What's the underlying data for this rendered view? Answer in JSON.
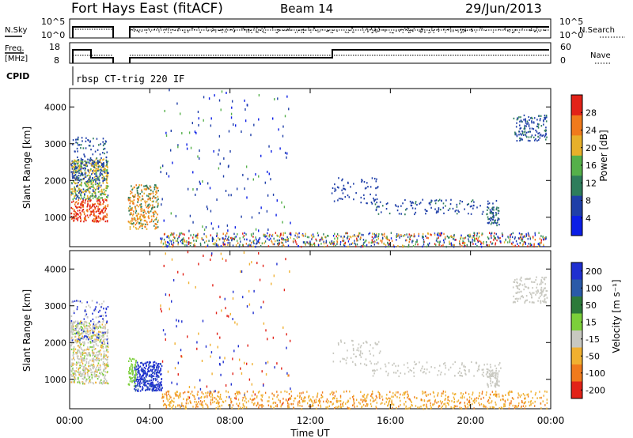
{
  "header": {
    "station": "Fort Hays East (fitACF)",
    "beam": "Beam 14",
    "date": "29/Jun/2013"
  },
  "top_panels": {
    "nsky_label": "N.Sky",
    "nsky_ticks": [
      "10^5",
      "10^0"
    ],
    "nsearch_label": "N.Search",
    "freq_label_1": "Freq.",
    "freq_label_2": "[MHz]",
    "freq_ticks": [
      "18",
      "8"
    ],
    "nave_label": "Nave",
    "nave_ticks": [
      "60",
      "0"
    ],
    "cpid_label": "CPID",
    "cpid_value": "rbsp CT-trig 220 IF"
  },
  "chart_data": [
    {
      "type": "heatmap",
      "name": "power",
      "ylabel": "Slant Range [km]",
      "yticks": [
        "1000",
        "2000",
        "3000",
        "4000"
      ],
      "ylim": [
        200,
        4500
      ],
      "colorbar_label": "Power [dB]",
      "colorbar_ticks": [
        "4",
        "8",
        "12",
        "16",
        "20",
        "24",
        "28"
      ],
      "colorbar_colors": [
        "#0b1ee6",
        "#1f3fa8",
        "#2e7d5c",
        "#55b04a",
        "#e7b02a",
        "#f07a1c",
        "#e22218"
      ],
      "colorbar_range": [
        0,
        30
      ]
    },
    {
      "type": "heatmap",
      "name": "velocity",
      "ylabel": "Slant Range [km]",
      "yticks": [
        "1000",
        "2000",
        "3000",
        "4000"
      ],
      "ylim": [
        200,
        4500
      ],
      "colorbar_label": "Velocity [m s⁻¹]",
      "colorbar_ticks": [
        "200",
        "100",
        "50",
        "15",
        "-15",
        "-50",
        "-100",
        "-200"
      ],
      "colorbar_colors": [
        "#1f2fd0",
        "#2a5aa8",
        "#2d7a3a",
        "#7ccf3a",
        "#c8c8c0",
        "#f0b030",
        "#f07a1c",
        "#e22218"
      ],
      "colorbar_range": [
        -250,
        250
      ]
    }
  ],
  "time_axis": {
    "ticks": [
      "00:00",
      "04:00",
      "08:00",
      "12:00",
      "16:00",
      "20:00",
      "00:00"
    ],
    "xlabel": "Time UT"
  }
}
